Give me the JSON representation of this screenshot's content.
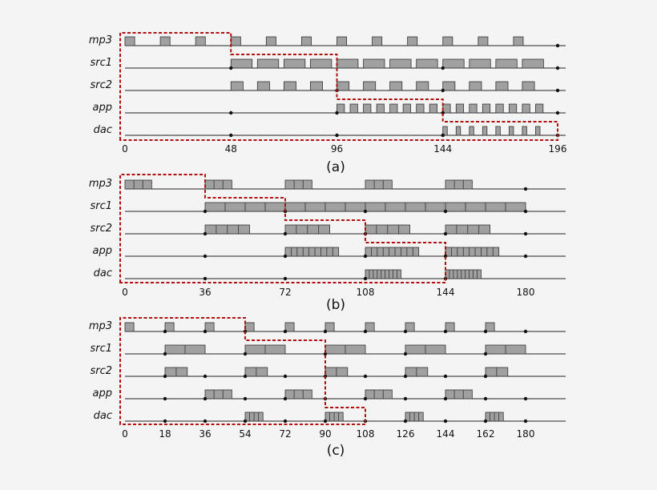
{
  "colors": {
    "background": "#f4f4f4",
    "task_fill": "#a0a0a0",
    "task_stroke": "#333333",
    "schedule_outline": "#b01010",
    "line": "#222222"
  },
  "lanes": [
    "mp3",
    "src1",
    "src2",
    "app",
    "dac"
  ],
  "panels": [
    {
      "caption": "(a)",
      "axis_max": 196,
      "ticks": [
        0,
        48,
        96,
        144,
        196
      ],
      "lanes": [
        {
          "name": "mp3",
          "dots": [
            196
          ],
          "blocks": [
            [
              0,
              4.4
            ],
            [
              16,
              4.4
            ],
            [
              32,
              4.4
            ],
            [
              48,
              4.4
            ],
            [
              64,
              4.4
            ],
            [
              80,
              4.4
            ],
            [
              96,
              4.4
            ],
            [
              112,
              4.4
            ],
            [
              128,
              4.4
            ],
            [
              144,
              4.4
            ],
            [
              160,
              4.4
            ],
            [
              176,
              4.4
            ]
          ]
        },
        {
          "name": "src1",
          "dots": [
            48,
            144,
            196
          ],
          "blocks": [
            [
              48,
              9.6
            ],
            [
              60,
              9.6
            ],
            [
              72,
              9.6
            ],
            [
              84,
              9.6
            ],
            [
              96,
              9.6
            ],
            [
              108,
              9.6
            ],
            [
              120,
              9.6
            ],
            [
              132,
              9.6
            ],
            [
              144,
              9.6
            ],
            [
              156,
              9.6
            ],
            [
              168,
              9.6
            ],
            [
              180,
              9.6
            ]
          ]
        },
        {
          "name": "src2",
          "dots": [
            96,
            144,
            196
          ],
          "blocks": [
            [
              48,
              5.5
            ],
            [
              60,
              5.5
            ],
            [
              72,
              5.5
            ],
            [
              84,
              5.5
            ],
            [
              96,
              5.5
            ],
            [
              108,
              5.5
            ],
            [
              120,
              5.5
            ],
            [
              132,
              5.5
            ],
            [
              144,
              5.5
            ],
            [
              156,
              5.5
            ],
            [
              168,
              5.5
            ],
            [
              180,
              5.5
            ]
          ]
        },
        {
          "name": "app",
          "dots": [
            48,
            96,
            144,
            196
          ],
          "blocks": [
            [
              96,
              3.4
            ],
            [
              102,
              3.4
            ],
            [
              108,
              3.4
            ],
            [
              114,
              3.4
            ],
            [
              120,
              3.4
            ],
            [
              126,
              3.4
            ],
            [
              132,
              3.4
            ],
            [
              138,
              3.4
            ],
            [
              144,
              3.4
            ],
            [
              150,
              3.4
            ],
            [
              156,
              3.4
            ],
            [
              162,
              3.4
            ],
            [
              168,
              3.4
            ],
            [
              174,
              3.4
            ],
            [
              180,
              3.4
            ],
            [
              186,
              3.4
            ]
          ]
        },
        {
          "name": "dac",
          "dots": [
            48,
            96,
            144,
            196
          ],
          "blocks": [
            [
              144,
              2
            ],
            [
              150,
              2
            ],
            [
              156,
              2
            ],
            [
              162,
              2
            ],
            [
              168,
              2
            ],
            [
              174,
              2
            ],
            [
              180,
              2
            ],
            [
              186,
              2
            ]
          ]
        }
      ],
      "schedule": [
        [
          0,
          0
        ],
        [
          48,
          0
        ],
        [
          48,
          1
        ],
        [
          96,
          1
        ],
        [
          96,
          3
        ],
        [
          144,
          3
        ],
        [
          144,
          4
        ],
        [
          196,
          4
        ]
      ]
    },
    {
      "caption": "(b)",
      "axis_max": 180,
      "ticks": [
        0,
        36,
        72,
        108,
        144,
        180
      ],
      "lanes": [
        {
          "name": "mp3",
          "dots": [
            180
          ],
          "blocks": [
            [
              0,
              12,
              3
            ],
            [
              36,
              12,
              3
            ],
            [
              72,
              12,
              3
            ],
            [
              108,
              12,
              3
            ],
            [
              144,
              12,
              3
            ]
          ]
        },
        {
          "name": "src1",
          "dots": [
            36,
            72,
            108,
            144,
            180
          ],
          "blocks": [
            [
              36,
              144,
              16
            ]
          ]
        },
        {
          "name": "src2",
          "dots": [
            36,
            72,
            108,
            144,
            180
          ],
          "blocks": [
            [
              36,
              20,
              4
            ],
            [
              72,
              20,
              4
            ],
            [
              108,
              20,
              4
            ],
            [
              144,
              20,
              4
            ]
          ]
        },
        {
          "name": "app",
          "dots": [
            36,
            72,
            108,
            144,
            180
          ],
          "blocks": [
            [
              72,
              24,
              9
            ],
            [
              108,
              24,
              9
            ],
            [
              144,
              24,
              9
            ]
          ]
        },
        {
          "name": "dac",
          "dots": [
            36,
            72,
            108,
            144
          ],
          "blocks": [
            [
              108,
              16,
              9
            ],
            [
              144,
              16,
              9
            ]
          ]
        }
      ],
      "schedule": [
        [
          0,
          0
        ],
        [
          36,
          0
        ],
        [
          36,
          1
        ],
        [
          72,
          1
        ],
        [
          72,
          2
        ],
        [
          108,
          2
        ],
        [
          108,
          3
        ],
        [
          144,
          3
        ],
        [
          144,
          4
        ]
      ]
    },
    {
      "caption": "(c)",
      "axis_max": 180,
      "ticks": [
        0,
        18,
        36,
        54,
        72,
        90,
        108,
        126,
        144,
        162,
        180
      ],
      "lanes": [
        {
          "name": "mp3",
          "dots": [
            18,
            36,
            54,
            72,
            90,
            108,
            126,
            144,
            162,
            180
          ],
          "blocks": [
            [
              0,
              4
            ],
            [
              18,
              4
            ],
            [
              36,
              4
            ],
            [
              54,
              4
            ],
            [
              72,
              4
            ],
            [
              90,
              4
            ],
            [
              108,
              4
            ],
            [
              126,
              4
            ],
            [
              144,
              4
            ],
            [
              162,
              4
            ]
          ]
        },
        {
          "name": "src1",
          "dots": [
            18,
            54,
            90,
            126,
            162
          ],
          "blocks": [
            [
              18,
              18,
              2
            ],
            [
              54,
              18,
              2
            ],
            [
              90,
              18,
              2
            ],
            [
              126,
              18,
              2
            ],
            [
              162,
              18,
              2
            ]
          ]
        },
        {
          "name": "src2",
          "dots": [
            18,
            36,
            54,
            72,
            90,
            108,
            126,
            144,
            162
          ],
          "blocks": [
            [
              18,
              10,
              2
            ],
            [
              54,
              10,
              2
            ],
            [
              90,
              10,
              2
            ],
            [
              126,
              10,
              2
            ],
            [
              162,
              10,
              2
            ]
          ]
        },
        {
          "name": "app",
          "dots": [
            18,
            36,
            54,
            72,
            90,
            108,
            126,
            144,
            162,
            180
          ],
          "blocks": [
            [
              36,
              12,
              3
            ],
            [
              72,
              12,
              3
            ],
            [
              108,
              12,
              3
            ],
            [
              144,
              12,
              3
            ]
          ]
        },
        {
          "name": "dac",
          "dots": [
            18,
            36,
            54,
            72,
            90,
            108,
            126,
            144,
            162,
            180
          ],
          "blocks": [
            [
              54,
              8,
              4
            ],
            [
              90,
              8,
              4
            ],
            [
              126,
              8,
              4
            ],
            [
              162,
              8,
              4
            ]
          ]
        }
      ],
      "schedule": [
        [
          0,
          0
        ],
        [
          54,
          0
        ],
        [
          54,
          1
        ],
        [
          90,
          1
        ],
        [
          90,
          4
        ],
        [
          108,
          4
        ]
      ]
    }
  ]
}
